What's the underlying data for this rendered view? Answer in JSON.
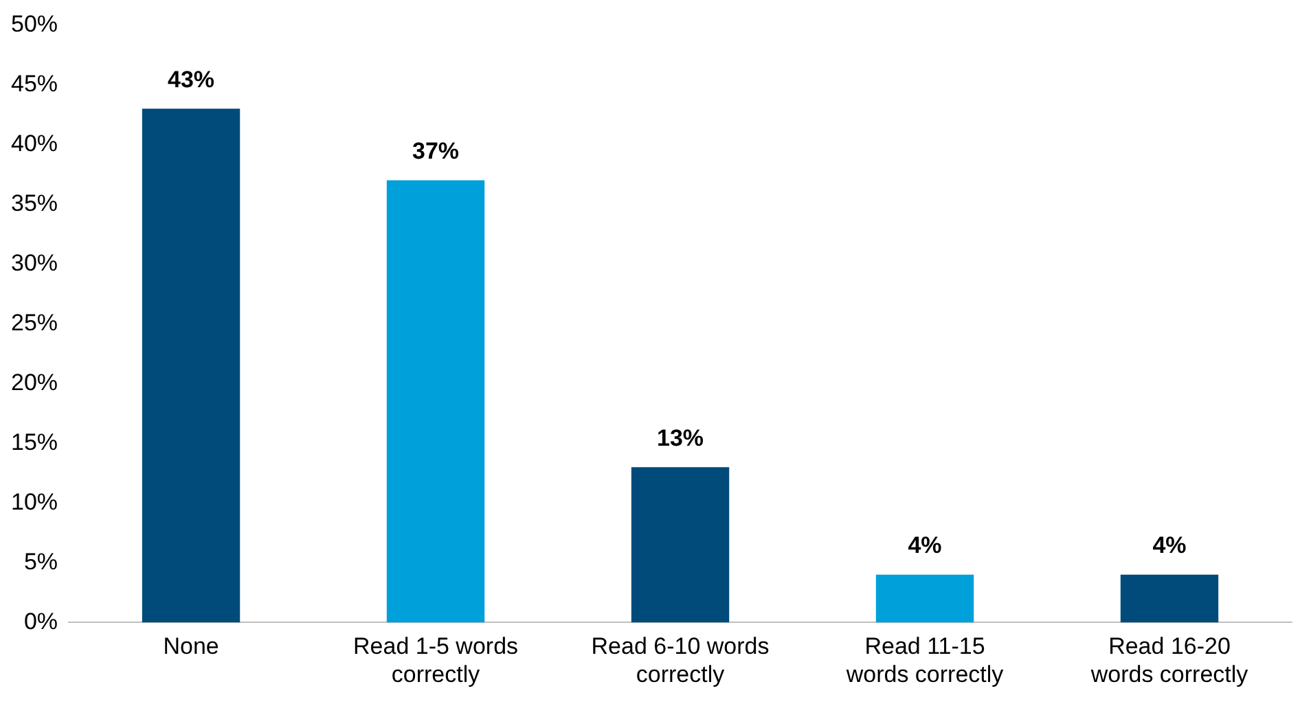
{
  "chart_data": {
    "type": "bar",
    "categories": [
      "None",
      "Read 1-5 words correctly",
      "Read 6-10 words correctly",
      "Read 11-15 words correctly",
      "Read 16-20 words correctly"
    ],
    "values": [
      43,
      37,
      13,
      4,
      4
    ],
    "value_labels": [
      "43%",
      "37%",
      "13%",
      "4%",
      "4%"
    ],
    "colors": [
      "#004b7a",
      "#00a0da",
      "#004b7a",
      "#00a0da",
      "#004b7a"
    ],
    "ylim": [
      0,
      50
    ],
    "yticks": [
      {
        "value": 0,
        "label": "0%"
      },
      {
        "value": 5,
        "label": "5%"
      },
      {
        "value": 10,
        "label": "10%"
      },
      {
        "value": 15,
        "label": "15%"
      },
      {
        "value": 20,
        "label": "20%"
      },
      {
        "value": 25,
        "label": "25%"
      },
      {
        "value": 30,
        "label": "30%"
      },
      {
        "value": 35,
        "label": "35%"
      },
      {
        "value": 40,
        "label": "40%"
      },
      {
        "value": 45,
        "label": "45%"
      },
      {
        "value": 50,
        "label": "50%"
      }
    ],
    "grid": false,
    "legend": false
  }
}
